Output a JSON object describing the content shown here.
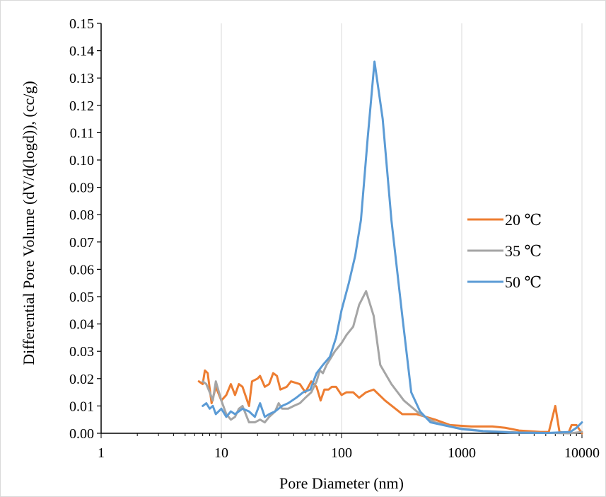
{
  "chart_data": {
    "type": "line",
    "title": "",
    "xlabel": "Pore Diameter (nm)",
    "ylabel": "Differential Pore Volume (dV/d(logd)), (cc/g)",
    "xscale": "log",
    "xlim": [
      1,
      10000
    ],
    "ylim": [
      0,
      0.15
    ],
    "x_ticks": [
      "1",
      "10",
      "100",
      "1000",
      "10000"
    ],
    "y_ticks": [
      "0.00",
      "0.01",
      "0.02",
      "0.03",
      "0.04",
      "0.05",
      "0.06",
      "0.07",
      "0.08",
      "0.09",
      "0.10",
      "0.11",
      "0.12",
      "0.13",
      "0.14",
      "0.15"
    ],
    "grid": "vertical major gridlines",
    "legend_position": "right",
    "series": [
      {
        "name": "20 ℃",
        "color": "#ED7D31",
        "points": [
          [
            6.5,
            0.019
          ],
          [
            7,
            0.018
          ],
          [
            7.3,
            0.023
          ],
          [
            7.7,
            0.022
          ],
          [
            8.3,
            0.011
          ],
          [
            9,
            0.017
          ],
          [
            10,
            0.012
          ],
          [
            11,
            0.014
          ],
          [
            12,
            0.018
          ],
          [
            13,
            0.014
          ],
          [
            14,
            0.018
          ],
          [
            15,
            0.017
          ],
          [
            17,
            0.01
          ],
          [
            18,
            0.019
          ],
          [
            20,
            0.02
          ],
          [
            21,
            0.021
          ],
          [
            23,
            0.017
          ],
          [
            25,
            0.018
          ],
          [
            27,
            0.022
          ],
          [
            29,
            0.021
          ],
          [
            31,
            0.016
          ],
          [
            35,
            0.017
          ],
          [
            38,
            0.019
          ],
          [
            45,
            0.018
          ],
          [
            50,
            0.015
          ],
          [
            56,
            0.019
          ],
          [
            62,
            0.017
          ],
          [
            67,
            0.012
          ],
          [
            72,
            0.016
          ],
          [
            78,
            0.016
          ],
          [
            83,
            0.017
          ],
          [
            90,
            0.017
          ],
          [
            100,
            0.014
          ],
          [
            110,
            0.015
          ],
          [
            125,
            0.015
          ],
          [
            140,
            0.013
          ],
          [
            160,
            0.015
          ],
          [
            185,
            0.016
          ],
          [
            230,
            0.012
          ],
          [
            320,
            0.007
          ],
          [
            420,
            0.007
          ],
          [
            600,
            0.005
          ],
          [
            800,
            0.003
          ],
          [
            1200,
            0.0025
          ],
          [
            1800,
            0.0025
          ],
          [
            2300,
            0.002
          ],
          [
            3000,
            0.001
          ],
          [
            4500,
            0.0005
          ],
          [
            5300,
            0.0005
          ],
          [
            6000,
            0.01
          ],
          [
            6500,
            0.0005
          ],
          [
            7700,
            0.0
          ],
          [
            8200,
            0.003
          ],
          [
            9000,
            0.003
          ],
          [
            10000,
            0.0
          ]
        ]
      },
      {
        "name": "35 ℃",
        "color": "#A5A5A5",
        "points": [
          [
            7,
            0.019
          ],
          [
            7.5,
            0.018
          ],
          [
            8,
            0.015
          ],
          [
            8.5,
            0.012
          ],
          [
            9,
            0.019
          ],
          [
            10,
            0.012
          ],
          [
            11,
            0.007
          ],
          [
            12,
            0.005
          ],
          [
            13,
            0.006
          ],
          [
            14,
            0.009
          ],
          [
            15,
            0.01
          ],
          [
            17,
            0.004
          ],
          [
            19,
            0.004
          ],
          [
            21,
            0.005
          ],
          [
            23,
            0.004
          ],
          [
            25,
            0.006
          ],
          [
            28,
            0.008
          ],
          [
            30,
            0.011
          ],
          [
            32,
            0.009
          ],
          [
            36,
            0.009
          ],
          [
            40,
            0.01
          ],
          [
            45,
            0.011
          ],
          [
            50,
            0.013
          ],
          [
            56,
            0.015
          ],
          [
            62,
            0.019
          ],
          [
            66,
            0.023
          ],
          [
            70,
            0.022
          ],
          [
            75,
            0.025
          ],
          [
            80,
            0.027
          ],
          [
            88,
            0.03
          ],
          [
            100,
            0.033
          ],
          [
            110,
            0.036
          ],
          [
            125,
            0.039
          ],
          [
            140,
            0.047
          ],
          [
            160,
            0.052
          ],
          [
            185,
            0.043
          ],
          [
            210,
            0.025
          ],
          [
            260,
            0.018
          ],
          [
            330,
            0.012
          ],
          [
            450,
            0.007
          ],
          [
            600,
            0.004
          ],
          [
            900,
            0.002
          ],
          [
            1500,
            0.0008
          ],
          [
            3000,
            0.0003
          ],
          [
            6000,
            0.0001
          ],
          [
            8000,
            0.0
          ],
          [
            10000,
            0.0005
          ]
        ]
      },
      {
        "name": "50 ℃",
        "color": "#5B9BD5",
        "points": [
          [
            7,
            0.01
          ],
          [
            7.5,
            0.011
          ],
          [
            8,
            0.009
          ],
          [
            8.5,
            0.01
          ],
          [
            9,
            0.007
          ],
          [
            10,
            0.009
          ],
          [
            11,
            0.006
          ],
          [
            12,
            0.008
          ],
          [
            13,
            0.007
          ],
          [
            15,
            0.009
          ],
          [
            17,
            0.008
          ],
          [
            19,
            0.006
          ],
          [
            21,
            0.011
          ],
          [
            23,
            0.006
          ],
          [
            25,
            0.007
          ],
          [
            28,
            0.008
          ],
          [
            32,
            0.01
          ],
          [
            36,
            0.011
          ],
          [
            42,
            0.013
          ],
          [
            48,
            0.015
          ],
          [
            55,
            0.016
          ],
          [
            62,
            0.022
          ],
          [
            70,
            0.025
          ],
          [
            80,
            0.028
          ],
          [
            90,
            0.035
          ],
          [
            100,
            0.045
          ],
          [
            115,
            0.055
          ],
          [
            130,
            0.065
          ],
          [
            145,
            0.078
          ],
          [
            165,
            0.108
          ],
          [
            188,
            0.136
          ],
          [
            220,
            0.115
          ],
          [
            260,
            0.078
          ],
          [
            320,
            0.043
          ],
          [
            380,
            0.015
          ],
          [
            450,
            0.008
          ],
          [
            550,
            0.004
          ],
          [
            700,
            0.003
          ],
          [
            1000,
            0.0015
          ],
          [
            1500,
            0.0008
          ],
          [
            2500,
            0.0003
          ],
          [
            5000,
            0.0001
          ],
          [
            8000,
            0.0005
          ],
          [
            9000,
            0.002
          ],
          [
            10000,
            0.004
          ]
        ]
      }
    ]
  }
}
